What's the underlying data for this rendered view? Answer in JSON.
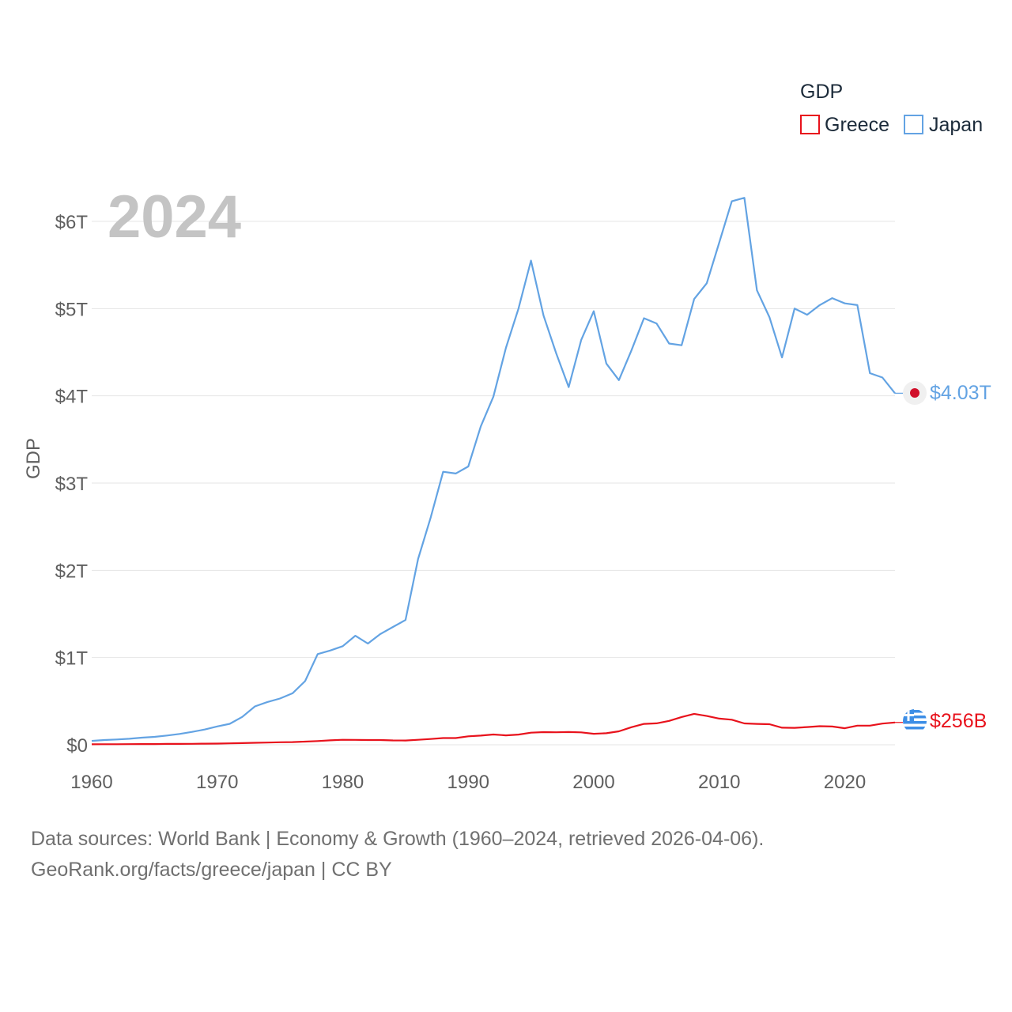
{
  "chart_data": {
    "type": "line",
    "year_label": "2024",
    "ylabel": "GDP",
    "xlim": [
      1960,
      2024
    ],
    "ylim": [
      0,
      6000
    ],
    "y_unit": "billion USD",
    "xticks": [
      1960,
      1970,
      1980,
      1990,
      2000,
      2010,
      2020
    ],
    "yticks": [
      {
        "value": 0,
        "label": "$0"
      },
      {
        "value": 1000,
        "label": "$1T"
      },
      {
        "value": 2000,
        "label": "$2T"
      },
      {
        "value": 3000,
        "label": "$3T"
      },
      {
        "value": 4000,
        "label": "$4T"
      },
      {
        "value": 5000,
        "label": "$5T"
      },
      {
        "value": 6000,
        "label": "$6T"
      }
    ],
    "legend": {
      "title": "GDP",
      "position": "top-right"
    },
    "series": [
      {
        "name": "Greece",
        "color": "#e8121c",
        "end_label": "$256B",
        "end_icon": "greece-flag-icon",
        "x": [
          1960,
          1961,
          1962,
          1963,
          1964,
          1965,
          1966,
          1967,
          1968,
          1969,
          1970,
          1971,
          1972,
          1973,
          1974,
          1975,
          1976,
          1977,
          1978,
          1979,
          1980,
          1981,
          1982,
          1983,
          1984,
          1985,
          1986,
          1987,
          1988,
          1989,
          1990,
          1991,
          1992,
          1993,
          1994,
          1995,
          1996,
          1997,
          1998,
          1999,
          2000,
          2001,
          2002,
          2003,
          2004,
          2005,
          2006,
          2007,
          2008,
          2009,
          2010,
          2011,
          2012,
          2013,
          2014,
          2015,
          2016,
          2017,
          2018,
          2019,
          2020,
          2021,
          2022,
          2023,
          2024
        ],
        "values": [
          5,
          6,
          6,
          7,
          8,
          8,
          10,
          10,
          11,
          13,
          14,
          16,
          19,
          23,
          25,
          29,
          31,
          36,
          43,
          51,
          57,
          56,
          54,
          54,
          50,
          49,
          57,
          66,
          77,
          77,
          97,
          105,
          118,
          108,
          117,
          139,
          145,
          143,
          146,
          142,
          126,
          132,
          154,
          201,
          239,
          246,
          274,
          318,
          354,
          330,
          300,
          287,
          245,
          239,
          236,
          196,
          194,
          203,
          213,
          209,
          189,
          219,
          219,
          243,
          256
        ]
      },
      {
        "name": "Japan",
        "color": "#63a3e3",
        "end_label": "$4.03T",
        "end_icon": "japan-flag-icon",
        "x": [
          1960,
          1961,
          1962,
          1963,
          1964,
          1965,
          1966,
          1967,
          1968,
          1969,
          1970,
          1971,
          1972,
          1973,
          1974,
          1975,
          1976,
          1977,
          1978,
          1979,
          1980,
          1981,
          1982,
          1983,
          1984,
          1985,
          1986,
          1987,
          1988,
          1989,
          1990,
          1991,
          1992,
          1993,
          1994,
          1995,
          1996,
          1997,
          1998,
          1999,
          2000,
          2001,
          2002,
          2003,
          2004,
          2005,
          2006,
          2007,
          2008,
          2009,
          2010,
          2011,
          2012,
          2013,
          2014,
          2015,
          2016,
          2017,
          2018,
          2019,
          2020,
          2021,
          2022,
          2023,
          2024
        ],
        "values": [
          44,
          54,
          61,
          69,
          82,
          91,
          106,
          124,
          148,
          175,
          210,
          240,
          320,
          440,
          490,
          530,
          590,
          730,
          1040,
          1080,
          1130,
          1250,
          1160,
          1270,
          1350,
          1430,
          2130,
          2600,
          3130,
          3110,
          3190,
          3650,
          3990,
          4550,
          5000,
          5550,
          4920,
          4490,
          4100,
          4640,
          4970,
          4370,
          4180,
          4520,
          4890,
          4830,
          4600,
          4580,
          5110,
          5290,
          5760,
          6230,
          6270,
          5210,
          4900,
          4440,
          5000,
          4930,
          5040,
          5120,
          5060,
          5040,
          4260,
          4210,
          4030
        ]
      }
    ]
  },
  "source": {
    "line1": "Data sources: World Bank | Economy & Growth (1960–2024, retrieved 2026-04-06).",
    "line2": "GeoRank.org/facts/greece/japan | CC BY"
  }
}
